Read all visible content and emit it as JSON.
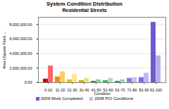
{
  "chart_data": {
    "type": "bar",
    "title": "System Condition Distribution",
    "subtitle": "Residential Streets",
    "x_label": "Condition",
    "y_label": "Area (Square Feet)",
    "categories": [
      "0-10",
      "11-20",
      "21-30",
      "31-40",
      "41-50",
      "51-60",
      "61-70",
      "71-80",
      "81-90",
      "91-100"
    ],
    "series": [
      {
        "name": "2009 Work Completed",
        "color": "#6a5acd",
        "colors": [
          "#cc0000",
          "#e69500",
          "#e6c200",
          "#c8b400",
          "#2e8b57",
          "#3cb371",
          "#20a080",
          "#8a7fd0",
          "#7b68ee",
          "#6a5acd"
        ],
        "values": [
          500000,
          800000,
          400000,
          300000,
          200000,
          300000,
          200000,
          600000,
          700000,
          8300000
        ]
      },
      {
        "name": "2008 PCI Conditions",
        "color": "#c0b8f5",
        "colors": [
          "#ff6666",
          "#ffcc66",
          "#ffe680",
          "#ede380",
          "#8fd19e",
          "#a8e0b4",
          "#90d8c0",
          "#c6bff0",
          "#c0b8f5",
          "#b8b0ee"
        ],
        "values": [
          2300000,
          1500000,
          1100000,
          600000,
          400000,
          600000,
          400000,
          700000,
          1300000,
          3700000
        ]
      }
    ],
    "ylim": [
      0,
      9000000
    ],
    "yticks": [
      {
        "value": 0,
        "label": "0.00"
      },
      {
        "value": 2000000,
        "label": "2,000,000.00"
      },
      {
        "value": 4000000,
        "label": "4,000,000.00"
      },
      {
        "value": 6000000,
        "label": "6,000,000.00"
      },
      {
        "value": 8000000,
        "label": "8,000,000.00"
      }
    ],
    "grid": true,
    "legend": "bottom"
  }
}
